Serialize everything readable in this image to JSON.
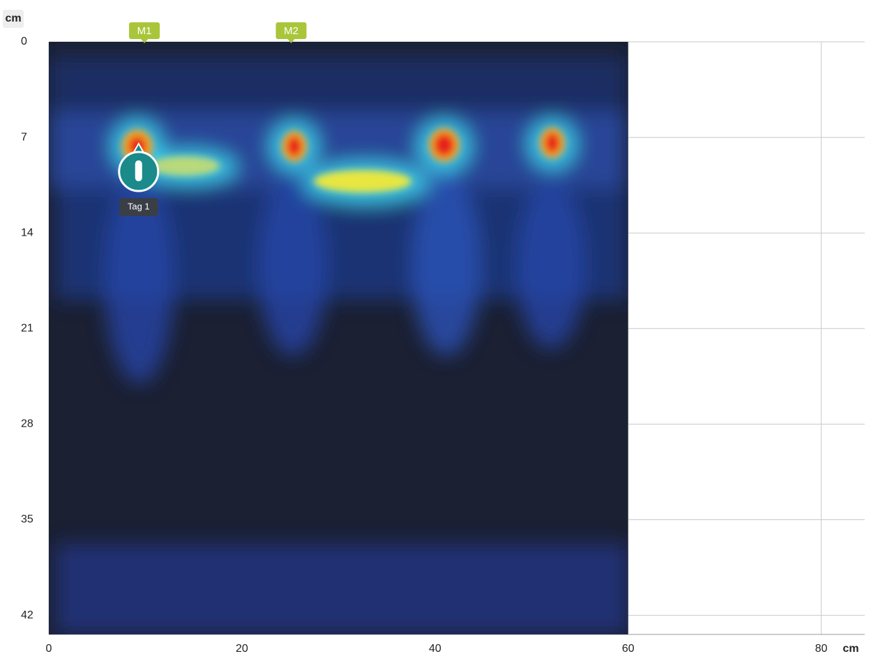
{
  "x_axis": {
    "unit": "cm",
    "lim": [
      0,
      84.5
    ],
    "ticks": [
      0,
      20,
      40,
      60,
      80
    ]
  },
  "y_axis": {
    "unit": "cm",
    "lim": [
      0,
      43.4
    ],
    "ticks": [
      0,
      7,
      14,
      21,
      28,
      35,
      42
    ]
  },
  "scan_end": 60,
  "markers": [
    {
      "label": "M1",
      "x": 9.9
    },
    {
      "label": "M2",
      "x": 25.1
    }
  ],
  "tags": [
    {
      "label": "Tag 1",
      "x": 9.3,
      "y": 9.5
    }
  ]
}
